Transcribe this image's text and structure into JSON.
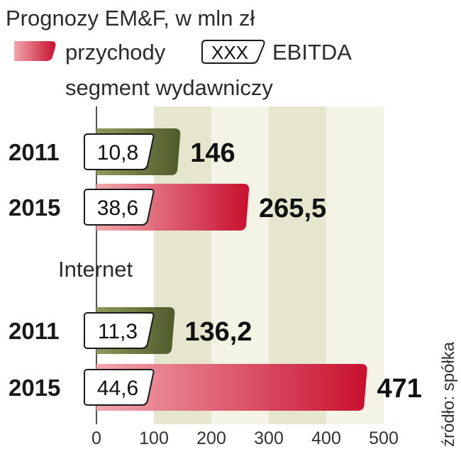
{
  "chart_data": {
    "type": "bar",
    "orientation": "horizontal",
    "title": "Prognozy EM&F, w mln zł",
    "legend": {
      "revenue_label": "przychody",
      "ebitda_sample": "XXX",
      "ebitda_label": "EBITDA"
    },
    "xlim": [
      0,
      500
    ],
    "xticks": [
      "0",
      "100",
      "200",
      "300",
      "400",
      "500"
    ],
    "groups": [
      {
        "name": "segment wydawniczy",
        "bars": [
          {
            "year": "2011",
            "revenue": 146,
            "revenue_label": "146",
            "ebitda": "10,8",
            "color": "green"
          },
          {
            "year": "2015",
            "revenue": 265.5,
            "revenue_label": "265,5",
            "ebitda": "38,6",
            "color": "red"
          }
        ]
      },
      {
        "name": "Internet",
        "bars": [
          {
            "year": "2011",
            "revenue": 136.2,
            "revenue_label": "136,2",
            "ebitda": "11,3",
            "color": "green"
          },
          {
            "year": "2015",
            "revenue": 471,
            "revenue_label": "471",
            "ebitda": "44,6",
            "color": "red"
          }
        ]
      }
    ],
    "source": "źródło: spółka"
  },
  "colors": {
    "green_dark": "#4f5a2a",
    "green_light": "#8e9a5c",
    "red_dark": "#c8102e",
    "red_light": "#f2a6ad",
    "band": "#e6e6cf",
    "band_alt": "#eeeedf"
  }
}
